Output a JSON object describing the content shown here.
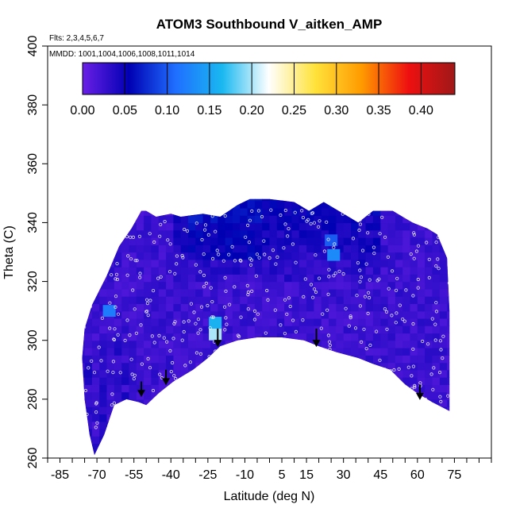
{
  "chart_data": {
    "type": "heatmap",
    "title": "ATOM3 Southbound V_aitken_AMP",
    "annotations": {
      "flights": "Flts: 2,3,4,5,6,7",
      "dates": "MMDD: 1001,1004,1006,1008,1011,1014"
    },
    "xlabel": "Latitude (deg N)",
    "ylabel": "Theta (C)",
    "xlim": [
      -90,
      90
    ],
    "ylim": [
      260,
      400
    ],
    "x_ticks": [
      -85,
      -70,
      -55,
      -40,
      -25,
      -10,
      5,
      15,
      30,
      45,
      60,
      75
    ],
    "x_minor_step": 5,
    "y_ticks": [
      260,
      280,
      300,
      320,
      340,
      360,
      380,
      400
    ],
    "colorbar": {
      "ticks": [
        "0.00",
        "0.05",
        "0.10",
        "0.15",
        "0.20",
        "0.25",
        "0.30",
        "0.35",
        "0.40"
      ],
      "range": [
        0,
        0.44
      ],
      "stops": [
        "#6a1fe6",
        "#0000b3",
        "#1f6fff",
        "#19b8f0",
        "#ffffff",
        "#ffe23a",
        "#ff9a00",
        "#ee1010",
        "#a01818"
      ]
    },
    "domain_outline": [
      [
        -71,
        261
      ],
      [
        -73,
        268
      ],
      [
        -75,
        280
      ],
      [
        -76,
        294
      ],
      [
        -75,
        304
      ],
      [
        -72,
        312
      ],
      [
        -66,
        322
      ],
      [
        -61,
        332
      ],
      [
        -56,
        338
      ],
      [
        -52,
        344
      ],
      [
        -50,
        344
      ],
      [
        -46,
        342
      ],
      [
        -40,
        343
      ],
      [
        -36,
        342
      ],
      [
        -27,
        343
      ],
      [
        -20,
        342
      ],
      [
        -13,
        346
      ],
      [
        -8,
        348
      ],
      [
        0,
        348
      ],
      [
        10,
        347
      ],
      [
        16,
        344
      ],
      [
        22,
        347
      ],
      [
        30,
        343
      ],
      [
        36,
        340
      ],
      [
        42,
        344
      ],
      [
        50,
        344
      ],
      [
        58,
        340
      ],
      [
        64,
        338
      ],
      [
        68,
        336
      ],
      [
        72,
        328
      ],
      [
        73,
        310
      ],
      [
        73,
        276
      ],
      [
        66,
        279
      ],
      [
        60,
        282
      ],
      [
        55,
        285
      ],
      [
        49,
        290
      ],
      [
        42,
        292
      ],
      [
        36,
        294
      ],
      [
        27,
        296
      ],
      [
        20,
        298
      ],
      [
        14,
        300
      ],
      [
        5,
        301
      ],
      [
        -5,
        301
      ],
      [
        -13,
        300
      ],
      [
        -20,
        298
      ],
      [
        -25,
        294
      ],
      [
        -31,
        290
      ],
      [
        -39,
        286
      ],
      [
        -45,
        282
      ],
      [
        -50,
        278
      ],
      [
        -53,
        279
      ],
      [
        -58,
        280
      ],
      [
        -63,
        278
      ],
      [
        -67,
        268
      ]
    ],
    "hotspots": [
      {
        "lat": -22,
        "theta": 306,
        "value": 0.16
      },
      {
        "lat": -22,
        "theta": 302,
        "value": 0.2
      },
      {
        "lat": 26,
        "theta": 329,
        "value": 0.13
      },
      {
        "lat": -65,
        "theta": 310,
        "value": 0.12
      },
      {
        "lat": 25,
        "theta": 334,
        "value": 0.1
      }
    ],
    "arrows": [
      {
        "lat": -52,
        "theta_top": 286,
        "theta_bottom": 281
      },
      {
        "lat": -42,
        "theta_top": 290,
        "theta_bottom": 285
      },
      {
        "lat": -21,
        "theta_top": 304,
        "theta_bottom": 298
      },
      {
        "lat": 19,
        "theta_top": 304,
        "theta_bottom": 298
      },
      {
        "lat": 61,
        "theta_top": 285,
        "theta_bottom": 280
      }
    ]
  }
}
